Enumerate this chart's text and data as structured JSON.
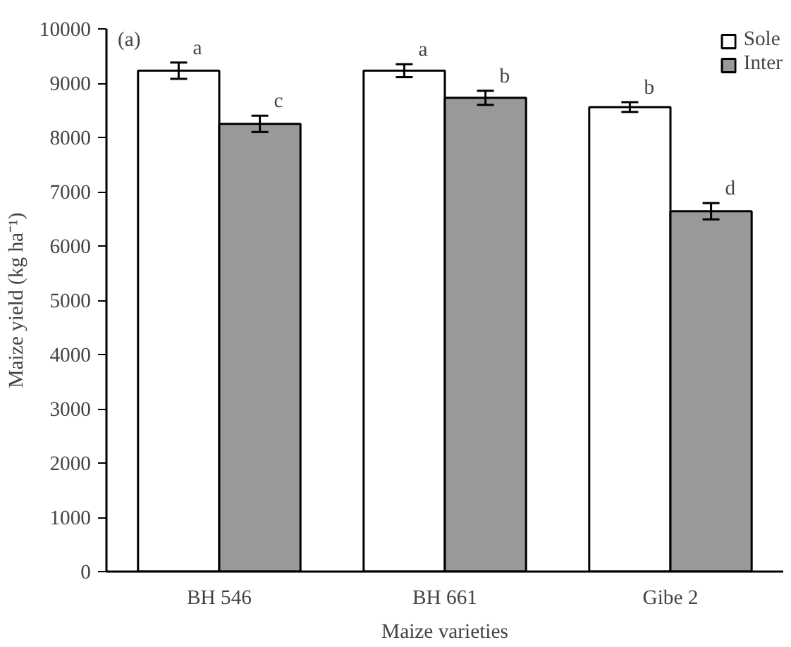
{
  "chart_data": {
    "type": "bar",
    "xlabel": "Maize varieties",
    "ylabel": "Maize yield (kg ha⁻¹)",
    "categories": [
      "BH 546",
      "BH 661",
      "Gibe 2"
    ],
    "series": [
      {
        "name": "Sole",
        "color": "#ffffff",
        "values": [
          9230,
          9230,
          8560
        ],
        "errors": [
          150,
          120,
          90
        ],
        "value_labels": [
          "a",
          "a",
          "b"
        ]
      },
      {
        "name": "Inter",
        "color": "#999999",
        "values": [
          8250,
          8730,
          6640
        ],
        "errors": [
          150,
          130,
          150
        ],
        "value_labels": [
          "c",
          "b",
          "d"
        ]
      }
    ],
    "ylim": [
      0,
      10000
    ],
    "yticks": [
      0,
      1000,
      2000,
      3000,
      4000,
      5000,
      6000,
      7000,
      8000,
      9000,
      10000
    ],
    "grid": false,
    "legend": "top right",
    "annotations": [
      "(a)"
    ]
  }
}
